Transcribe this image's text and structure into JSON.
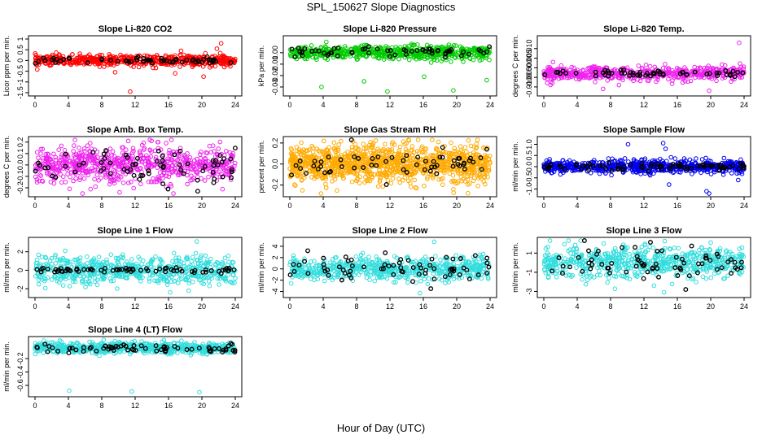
{
  "figure": {
    "title": "SPL_150627  Slope Diagnostics",
    "xlabel": "Hour of Day (UTC)"
  },
  "chart_data": [
    {
      "type": "scatter",
      "title": "Slope Li-820 CO2",
      "ylabel": "Licor ppm per min.",
      "xlim": [
        0,
        24
      ],
      "ylim": [
        -1.5,
        1.0
      ],
      "xticks": [
        0,
        4,
        8,
        12,
        16,
        20,
        24
      ],
      "yticks": [
        -1.5,
        -1.0,
        -0.5,
        0.0,
        0.5,
        1.0
      ],
      "ytick_labels": [
        "-1.5",
        "-1",
        "-0.5",
        "0",
        "0.5",
        "1"
      ],
      "series": [
        {
          "color": "#ff0000",
          "count": 600,
          "center": 0.0,
          "spread": 0.12,
          "outliers": [
            [
              9.6,
              -0.55
            ],
            [
              11.4,
              -1.45
            ],
            [
              16.8,
              -0.6
            ],
            [
              20.2,
              -0.75
            ],
            [
              22.3,
              0.8
            ],
            [
              21.8,
              0.55
            ],
            [
              17.5,
              0.45
            ]
          ]
        },
        {
          "color": "#000000",
          "count": 60,
          "center": 0.0,
          "spread": 0.07,
          "outliers": []
        }
      ]
    },
    {
      "type": "scatter",
      "title": "Slope Li-820 Pressure",
      "ylabel": "kPa per min.",
      "xlim": [
        0,
        24
      ],
      "ylim": [
        -0.035,
        0.012
      ],
      "xticks": [
        0,
        4,
        8,
        12,
        16,
        20,
        24
      ],
      "yticks": [
        -0.03,
        -0.02,
        -0.01,
        0.0
      ],
      "ytick_labels": [
        "-0.03",
        "-0.02",
        "-0.01",
        "0.00"
      ],
      "series": [
        {
          "color": "#00cc00",
          "count": 600,
          "center": 0.0,
          "spread": 0.003,
          "outliers": [
            [
              3.8,
              -0.03
            ],
            [
              8.9,
              -0.025
            ],
            [
              11.7,
              -0.034
            ],
            [
              16.1,
              -0.021
            ],
            [
              19.6,
              -0.033
            ],
            [
              23.6,
              -0.024
            ]
          ]
        },
        {
          "color": "#000000",
          "count": 60,
          "center": 0.001,
          "spread": 0.002,
          "outliers": []
        }
      ]
    },
    {
      "type": "scatter",
      "title": "Slope Li-820 Temp.",
      "ylabel": "degrees C per min.",
      "xlim": [
        0,
        24
      ],
      "ylim": [
        -0.013,
        0.015
      ],
      "xticks": [
        0,
        4,
        8,
        12,
        16,
        20,
        24
      ],
      "yticks": [
        -0.01,
        -0.005,
        0.0,
        0.005,
        0.01
      ],
      "ytick_labels": [
        "-0.010",
        "-0.005",
        "0.000",
        "0.005",
        "0.010"
      ],
      "series": [
        {
          "color": "#ee22ee",
          "count": 550,
          "center": -0.003,
          "spread": 0.0018,
          "outliers": [
            [
              0.4,
              -0.008
            ],
            [
              1.1,
              0.003
            ],
            [
              7.1,
              -0.011
            ],
            [
              9.0,
              -0.009
            ],
            [
              19.8,
              -0.012
            ],
            [
              23.4,
              0.013
            ],
            [
              23.5,
              0.0022
            ]
          ]
        },
        {
          "color": "#000000",
          "count": 60,
          "center": -0.003,
          "spread": 0.0009,
          "outliers": []
        }
      ]
    },
    {
      "type": "scatter",
      "title": "Slope Amb. Box Temp.",
      "ylabel": "degrees C per min.",
      "xlim": [
        0,
        24
      ],
      "ylim": [
        -0.25,
        0.22
      ],
      "xticks": [
        0,
        4,
        8,
        12,
        16,
        20,
        24
      ],
      "yticks": [
        -0.2,
        -0.1,
        0.0,
        0.1,
        0.2
      ],
      "ytick_labels": [
        "-0.2",
        "-0.1",
        "0.0",
        "0.1",
        "0.2"
      ],
      "series": [
        {
          "color": "#ee22ee",
          "count": 700,
          "center": 0.0,
          "spread": 0.08,
          "outliers": []
        },
        {
          "color": "#000000",
          "count": 70,
          "center": 0.0,
          "spread": 0.07,
          "outliers": [
            [
              19.5,
              -0.23
            ]
          ]
        }
      ]
    },
    {
      "type": "scatter",
      "title": "Slope Gas Stream RH",
      "ylabel": "percent per min.",
      "xlim": [
        0,
        24
      ],
      "ylim": [
        -0.28,
        0.23
      ],
      "xticks": [
        0,
        4,
        8,
        12,
        16,
        20,
        24
      ],
      "yticks": [
        -0.2,
        0.0,
        0.2
      ],
      "ytick_labels": [
        "-0.2",
        "0.0",
        "0.2"
      ],
      "series": [
        {
          "color": "#ffaa00",
          "count": 1100,
          "center": 0.0,
          "spread": 0.09,
          "outliers": [
            [
              1.5,
              -0.25
            ],
            [
              17.8,
              0.21
            ],
            [
              19.6,
              -0.24
            ]
          ]
        },
        {
          "color": "#000000",
          "count": 60,
          "center": 0.0,
          "spread": 0.07,
          "outliers": []
        }
      ]
    },
    {
      "type": "scatter",
      "title": "Slope Sample Flow",
      "ylabel": "ml/min per min.",
      "xlim": [
        0,
        24
      ],
      "ylim": [
        -1.2,
        1.2
      ],
      "xticks": [
        0,
        4,
        8,
        12,
        16,
        20,
        24
      ],
      "yticks": [
        -1.0,
        -0.5,
        0.0,
        0.5,
        1.0
      ],
      "ytick_labels": [
        "-1.0",
        "-0.5",
        "0.0",
        "0.5",
        "1.0"
      ],
      "series": [
        {
          "color": "#0000ee",
          "count": 700,
          "center": 0.0,
          "spread": 0.14,
          "outliers": [
            [
              10.1,
              1.0
            ],
            [
              14.3,
              1.05
            ],
            [
              14.6,
              0.8
            ],
            [
              15.0,
              -0.8
            ],
            [
              19.5,
              -1.1
            ],
            [
              19.8,
              -1.2
            ],
            [
              23.3,
              -0.6
            ]
          ]
        },
        {
          "color": "#000000",
          "count": 80,
          "center": 0.0,
          "spread": 0.08,
          "outliers": []
        }
      ]
    },
    {
      "type": "scatter",
      "title": "Slope Line 1 Flow",
      "ylabel": "ml/min per min.",
      "xlim": [
        0,
        24
      ],
      "ylim": [
        -2.6,
        3.2
      ],
      "xticks": [
        0,
        4,
        8,
        12,
        16,
        20,
        24
      ],
      "yticks": [
        -2,
        0,
        2
      ],
      "ytick_labels": [
        "-2",
        "0",
        "2"
      ],
      "series": [
        {
          "color": "#33dddd",
          "count": 650,
          "center": 0.0,
          "spread": 0.75,
          "outliers": [
            [
              19.4,
              3.1
            ],
            [
              16.2,
              -2.4
            ]
          ]
        },
        {
          "color": "#000000",
          "count": 70,
          "center": 0.0,
          "spread": 0.12,
          "outliers": []
        }
      ]
    },
    {
      "type": "scatter",
      "title": "Slope Line 2 Flow",
      "ylabel": "ml/min per min.",
      "xlim": [
        0,
        24
      ],
      "ylim": [
        -4.5,
        5.0
      ],
      "xticks": [
        0,
        4,
        8,
        12,
        16,
        20,
        24
      ],
      "yticks": [
        -4,
        -2,
        0,
        2,
        4
      ],
      "ytick_labels": [
        "-4",
        "-2",
        "0",
        "2",
        "4"
      ],
      "series": [
        {
          "color": "#33dddd",
          "count": 650,
          "center": 0.0,
          "spread": 1.0,
          "outliers": [
            [
              15.6,
              -4.3
            ],
            [
              17.3,
              4.8
            ]
          ]
        },
        {
          "color": "#000000",
          "count": 70,
          "center": 0.0,
          "spread": 1.3,
          "outliers": [
            [
              16.9,
              -3.5
            ]
          ]
        }
      ]
    },
    {
      "type": "scatter",
      "title": "Slope Line 3 Flow",
      "ylabel": "ml/min per min.",
      "xlim": [
        0,
        24
      ],
      "ylim": [
        -3.3,
        2.3
      ],
      "xticks": [
        0,
        4,
        8,
        12,
        16,
        20,
        24
      ],
      "yticks": [
        -3,
        -1,
        1
      ],
      "ytick_labels": [
        "-3",
        "-1",
        "1"
      ],
      "series": [
        {
          "color": "#33dddd",
          "count": 650,
          "center": 0.0,
          "spread": 0.8,
          "outliers": [
            [
              13.2,
              -2.4
            ],
            [
              14.4,
              -3.1
            ],
            [
              20.0,
              2.1
            ]
          ]
        },
        {
          "color": "#000000",
          "count": 70,
          "center": 0.0,
          "spread": 0.9,
          "outliers": [
            [
              17.0,
              -2.8
            ]
          ]
        }
      ]
    },
    {
      "type": "scatter",
      "title": "Slope Line 4 (LT) Flow",
      "ylabel": "ml/min per min.",
      "xlim": [
        0,
        24
      ],
      "ylim": [
        -0.72,
        0.08
      ],
      "xticks": [
        0,
        4,
        8,
        12,
        16,
        20,
        24
      ],
      "yticks": [
        -0.6,
        -0.4,
        -0.2
      ],
      "ytick_labels": [
        "-0.6",
        "-0.4",
        "-0.2"
      ],
      "series": [
        {
          "color": "#33dddd",
          "count": 650,
          "center": -0.04,
          "spread": 0.04,
          "outliers": [
            [
              4.1,
              -0.68
            ],
            [
              11.6,
              -0.69
            ],
            [
              19.7,
              -0.7
            ]
          ]
        },
        {
          "color": "#000000",
          "count": 70,
          "center": -0.04,
          "spread": 0.03,
          "outliers": []
        }
      ]
    }
  ]
}
